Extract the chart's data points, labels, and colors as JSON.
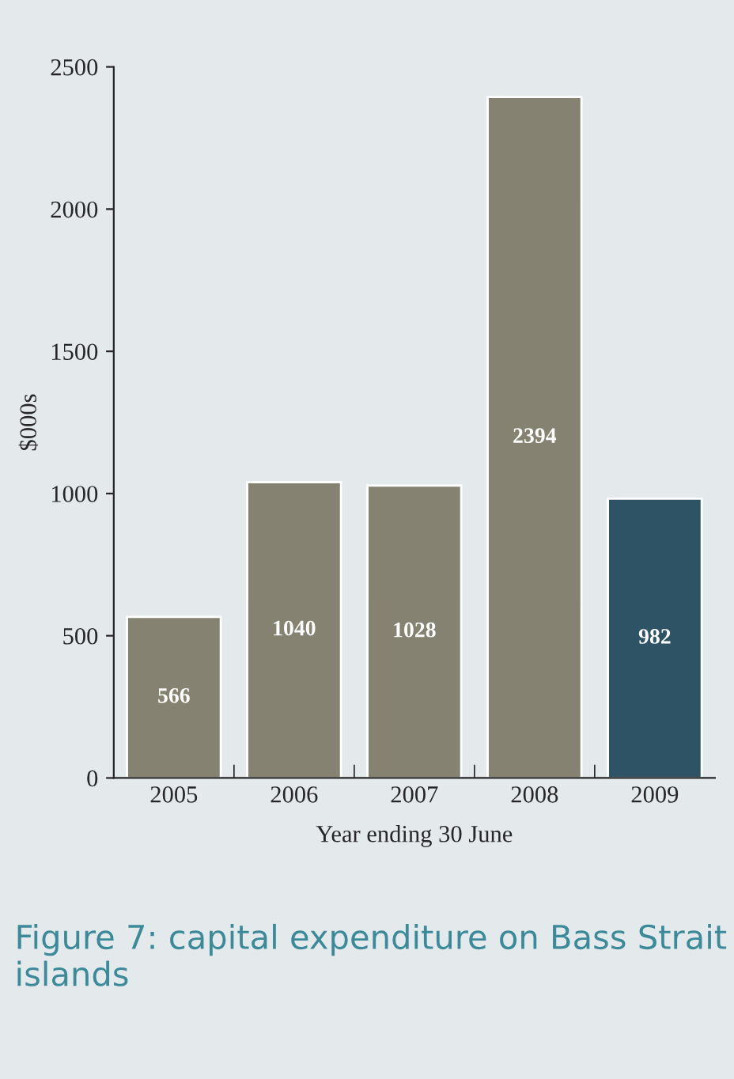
{
  "chart_data": {
    "type": "bar",
    "title": "Figure 7: capital expenditure on Bass Strait islands",
    "xlabel": "Year ending 30 June",
    "ylabel": "$000s",
    "categories": [
      "2005",
      "2006",
      "2007",
      "2008",
      "2009"
    ],
    "values": [
      566,
      1040,
      1028,
      2394,
      982
    ],
    "colors": [
      "#858271",
      "#858271",
      "#858271",
      "#858271",
      "#2e5364"
    ],
    "ylim": [
      0,
      2500
    ],
    "yticks": [
      0,
      500,
      1000,
      1500,
      2000,
      2500
    ],
    "grid": false,
    "data_labels": true
  }
}
